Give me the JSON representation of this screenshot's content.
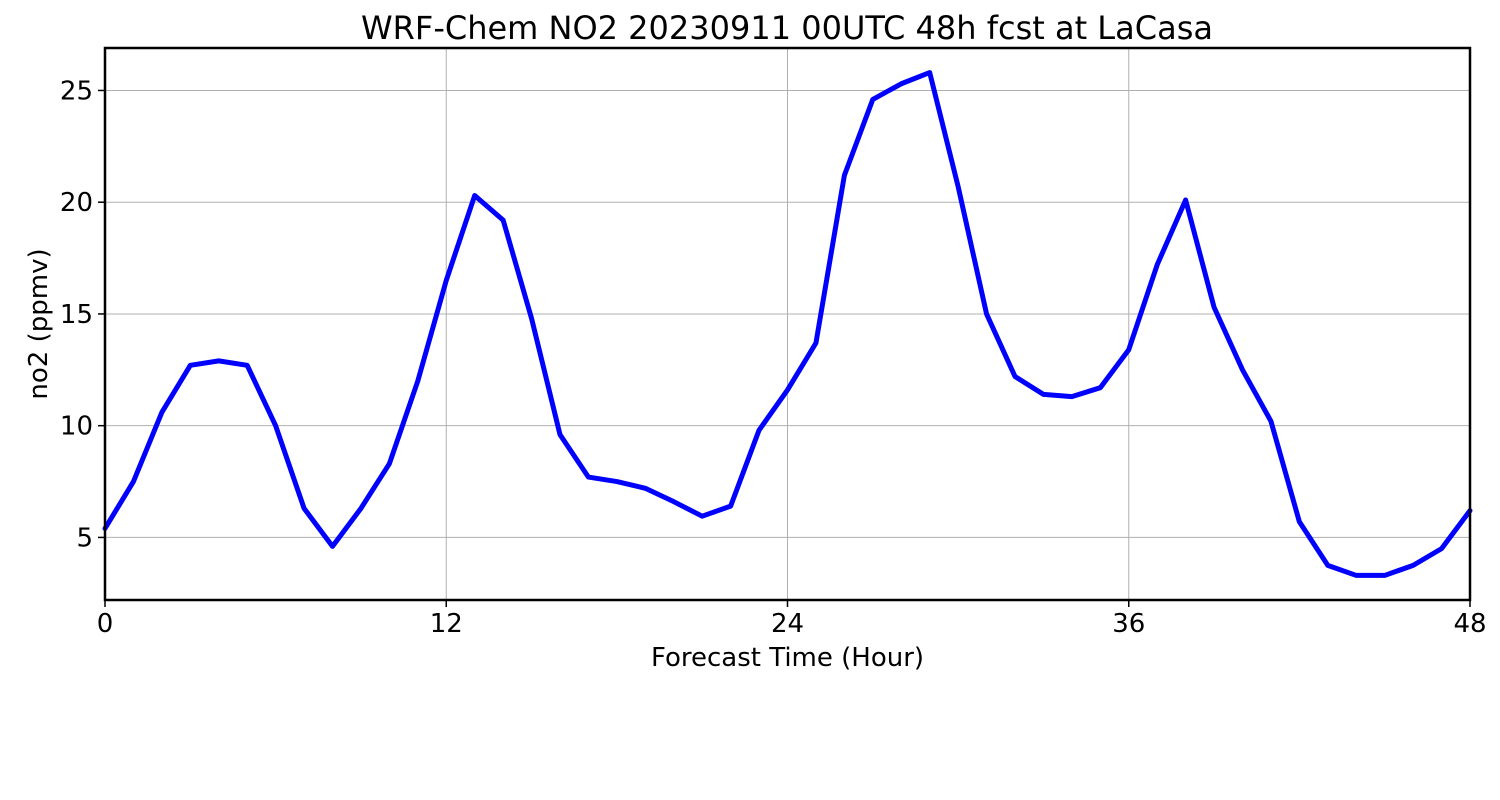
{
  "chart_data": {
    "type": "line",
    "title": "WRF-Chem NO2  20230911 00UTC 48h fcst at LaCasa",
    "xlabel": "Forecast Time (Hour)",
    "ylabel": "no2  (ppmv)",
    "xlim": [
      0,
      48
    ],
    "ylim": [
      2.2,
      26.9
    ],
    "xticks": [
      0,
      12,
      24,
      36,
      48
    ],
    "yticks": [
      5,
      10,
      15,
      20,
      25
    ],
    "grid": true,
    "series": [
      {
        "color": "#0000ff",
        "x": [
          0,
          1,
          2,
          3,
          4,
          5,
          6,
          7,
          8,
          9,
          10,
          11,
          12,
          13,
          14,
          15,
          16,
          17,
          18,
          19,
          20,
          21,
          22,
          23,
          24,
          25,
          26,
          27,
          28,
          29,
          30,
          31,
          32,
          33,
          34,
          35,
          36,
          37,
          38,
          39,
          40,
          41,
          42,
          43,
          44,
          45,
          46,
          47,
          48
        ],
        "y": [
          5.4,
          7.5,
          10.6,
          12.7,
          12.9,
          12.7,
          10.0,
          6.3,
          4.6,
          6.3,
          8.3,
          12.0,
          16.5,
          20.3,
          19.2,
          14.8,
          9.6,
          7.7,
          7.5,
          7.2,
          6.6,
          5.95,
          6.4,
          9.8,
          11.6,
          13.7,
          21.2,
          24.6,
          25.3,
          25.8,
          20.7,
          15.0,
          12.2,
          11.4,
          11.3,
          11.7,
          13.4,
          17.2,
          20.1,
          15.3,
          12.5,
          10.2,
          5.7,
          3.75,
          3.3,
          3.3,
          3.75,
          4.5,
          6.2
        ]
      }
    ]
  }
}
